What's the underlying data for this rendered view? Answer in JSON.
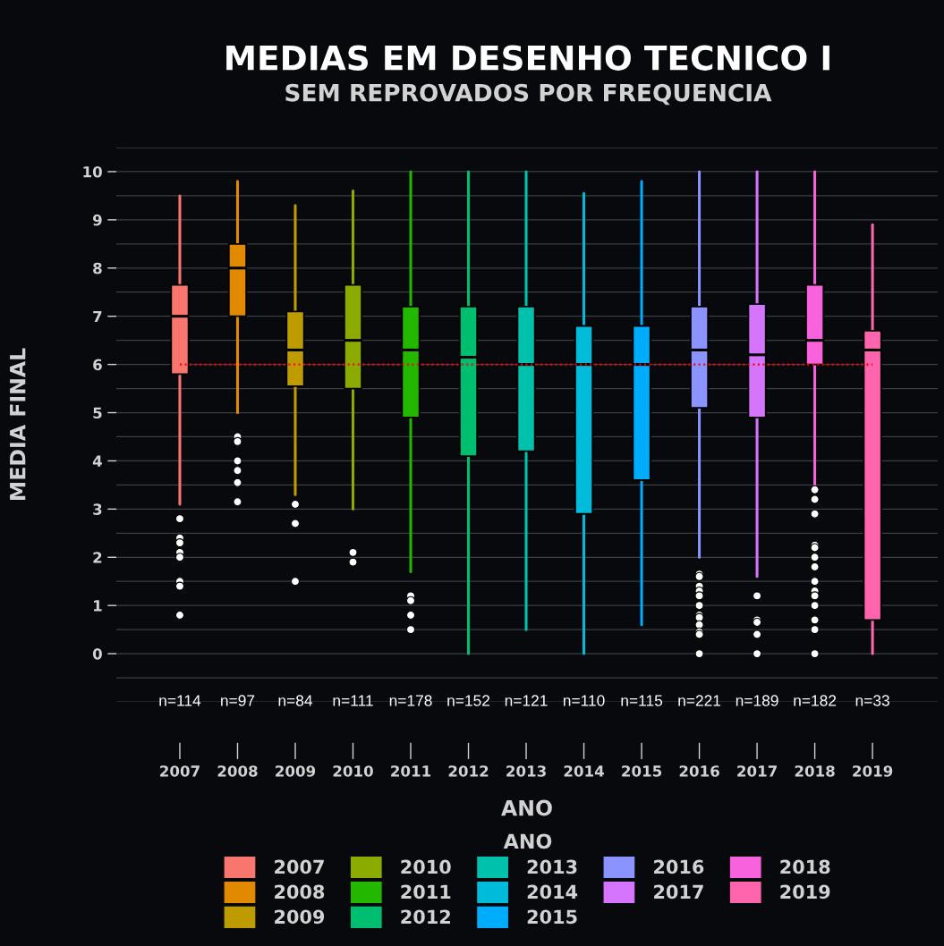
{
  "chart_data": {
    "type": "box",
    "title": "MEDIAS EM DESENHO TECNICO I",
    "subtitle": "SEM REPROVADOS POR FREQUENCIA",
    "xlabel": "ANO",
    "ylabel": "MEDIA FINAL",
    "legend_title": "ANO",
    "categories": [
      "2007",
      "2008",
      "2009",
      "2010",
      "2011",
      "2012",
      "2013",
      "2014",
      "2015",
      "2016",
      "2017",
      "2018",
      "2019"
    ],
    "series": [
      {
        "name": "2007",
        "color": "#f8766d",
        "boxes": [
          {
            "low": 3.1,
            "q1": 5.8,
            "median": 7.0,
            "q3": 7.65,
            "high": 9.5,
            "outliers": [
              2.8,
              2.4,
              2.3,
              2.1,
              2.0,
              1.5,
              1.4,
              0.8
            ]
          },
          null,
          null,
          null,
          null,
          null,
          null,
          null,
          null,
          null,
          null,
          null,
          null
        ]
      },
      {
        "name": "2008",
        "color": "#e18a00",
        "boxes": [
          null,
          {
            "low": 5.0,
            "q1": 7.0,
            "median": 8.0,
            "q3": 8.5,
            "high": 9.8,
            "outliers": [
              4.5,
              4.4,
              4.0,
              3.8,
              3.55,
              3.15
            ]
          },
          null,
          null,
          null,
          null,
          null,
          null,
          null,
          null,
          null,
          null,
          null
        ]
      },
      {
        "name": "2009",
        "color": "#be9c00",
        "boxes": [
          null,
          null,
          {
            "low": 3.3,
            "q1": 5.55,
            "median": 6.3,
            "q3": 7.1,
            "high": 9.3,
            "outliers": [
              3.1,
              2.7,
              1.5
            ]
          },
          null,
          null,
          null,
          null,
          null,
          null,
          null,
          null,
          null,
          null
        ]
      },
      {
        "name": "2010",
        "color": "#8cab00",
        "boxes": [
          null,
          null,
          null,
          {
            "low": 3.0,
            "q1": 5.5,
            "median": 6.5,
            "q3": 7.65,
            "high": 9.6,
            "outliers": [
              2.1,
              1.9
            ]
          },
          null,
          null,
          null,
          null,
          null,
          null,
          null,
          null,
          null
        ]
      },
      {
        "name": "2011",
        "color": "#24b700",
        "boxes": [
          null,
          null,
          null,
          null,
          {
            "low": 1.7,
            "q1": 4.9,
            "median": 6.3,
            "q3": 7.2,
            "high": 10.0,
            "outliers": [
              1.2,
              1.1,
              0.8,
              0.5
            ]
          },
          null,
          null,
          null,
          null,
          null,
          null,
          null,
          null
        ]
      },
      {
        "name": "2012",
        "color": "#00be70",
        "boxes": [
          null,
          null,
          null,
          null,
          null,
          {
            "low": 0.0,
            "q1": 4.1,
            "median": 6.15,
            "q3": 7.2,
            "high": 10.0
          },
          null,
          null,
          null,
          null,
          null,
          null,
          null
        ]
      },
      {
        "name": "2013",
        "color": "#00c1ab",
        "boxes": [
          null,
          null,
          null,
          null,
          null,
          null,
          {
            "low": 0.5,
            "q1": 4.2,
            "median": 6.0,
            "q3": 7.2,
            "high": 10.0
          },
          null,
          null,
          null,
          null,
          null,
          null
        ]
      },
      {
        "name": "2014",
        "color": "#00bbda",
        "boxes": [
          null,
          null,
          null,
          null,
          null,
          null,
          null,
          {
            "low": 0.0,
            "q1": 2.9,
            "median": 6.0,
            "q3": 6.8,
            "high": 9.55
          },
          null,
          null,
          null,
          null,
          null
        ]
      },
      {
        "name": "2015",
        "color": "#00acfc",
        "boxes": [
          null,
          null,
          null,
          null,
          null,
          null,
          null,
          null,
          {
            "low": 0.6,
            "q1": 3.6,
            "median": 6.0,
            "q3": 6.8,
            "high": 9.8
          },
          null,
          null,
          null,
          null
        ]
      },
      {
        "name": "2016",
        "color": "#8b93ff",
        "boxes": [
          null,
          null,
          null,
          null,
          null,
          null,
          null,
          null,
          null,
          {
            "low": 2.0,
            "q1": 5.1,
            "median": 6.3,
            "q3": 7.2,
            "high": 10.0,
            "outliers": [
              1.65,
              1.6,
              1.4,
              1.3,
              1.2,
              1.0,
              0.8,
              0.75,
              0.6,
              0.45,
              0.4,
              0.0
            ]
          },
          null,
          null,
          null
        ]
      },
      {
        "name": "2017",
        "color": "#d575fe",
        "boxes": [
          null,
          null,
          null,
          null,
          null,
          null,
          null,
          null,
          null,
          null,
          {
            "low": 1.6,
            "q1": 4.9,
            "median": 6.2,
            "q3": 7.25,
            "high": 10.0,
            "outliers": [
              1.2,
              0.7,
              0.65,
              0.4,
              0.0
            ]
          },
          null,
          null
        ]
      },
      {
        "name": "2018",
        "color": "#f962dd",
        "boxes": [
          null,
          null,
          null,
          null,
          null,
          null,
          null,
          null,
          null,
          null,
          null,
          {
            "low": 3.5,
            "q1": 6.0,
            "median": 6.5,
            "q3": 7.65,
            "high": 10.0,
            "outliers": [
              3.4,
              3.2,
              2.9,
              2.25,
              2.2,
              2.0,
              1.8,
              1.5,
              1.3,
              1.2,
              1.0,
              0.7,
              0.5,
              0.0
            ]
          },
          null
        ]
      },
      {
        "name": "2019",
        "color": "#ff65ac",
        "boxes": [
          null,
          null,
          null,
          null,
          null,
          null,
          null,
          null,
          null,
          null,
          null,
          null,
          {
            "low": 0.0,
            "q1": 0.7,
            "median": 6.3,
            "q3": 6.7,
            "high": 8.9
          }
        ]
      }
    ],
    "ylim": [
      -1,
      10.5
    ],
    "yticks": [
      {
        "value": -1,
        "label": null
      },
      {
        "value": -0.5,
        "label": null
      },
      0,
      {
        "value": 0.5,
        "label": null
      },
      1,
      {
        "value": 1.5,
        "label": null
      },
      2,
      {
        "value": 2.5,
        "label": null
      },
      3,
      {
        "value": 3.5,
        "label": null
      },
      4,
      {
        "value": 4.5,
        "label": null
      },
      5,
      {
        "value": 5.5,
        "label": null
      },
      6,
      {
        "value": 6.5,
        "label": null
      },
      7,
      {
        "value": 7.5,
        "label": null
      },
      8,
      {
        "value": 8.5,
        "label": null
      },
      9,
      {
        "value": 9.5,
        "label": null
      },
      10,
      {
        "value": 10.5,
        "label": null
      }
    ],
    "grid": "y",
    "legend": "bottom",
    "ref_lines": [
      {
        "axis": "y",
        "value": 6,
        "color": "#ff0000",
        "line_style": "dotted"
      }
    ],
    "annotations": [
      "n=114",
      "n=97",
      "n=84",
      "n=111",
      "n=178",
      "n=152",
      "n=121",
      "n=110",
      "n=115",
      "n=221",
      "n=189",
      "n=182",
      "n=33"
    ]
  }
}
